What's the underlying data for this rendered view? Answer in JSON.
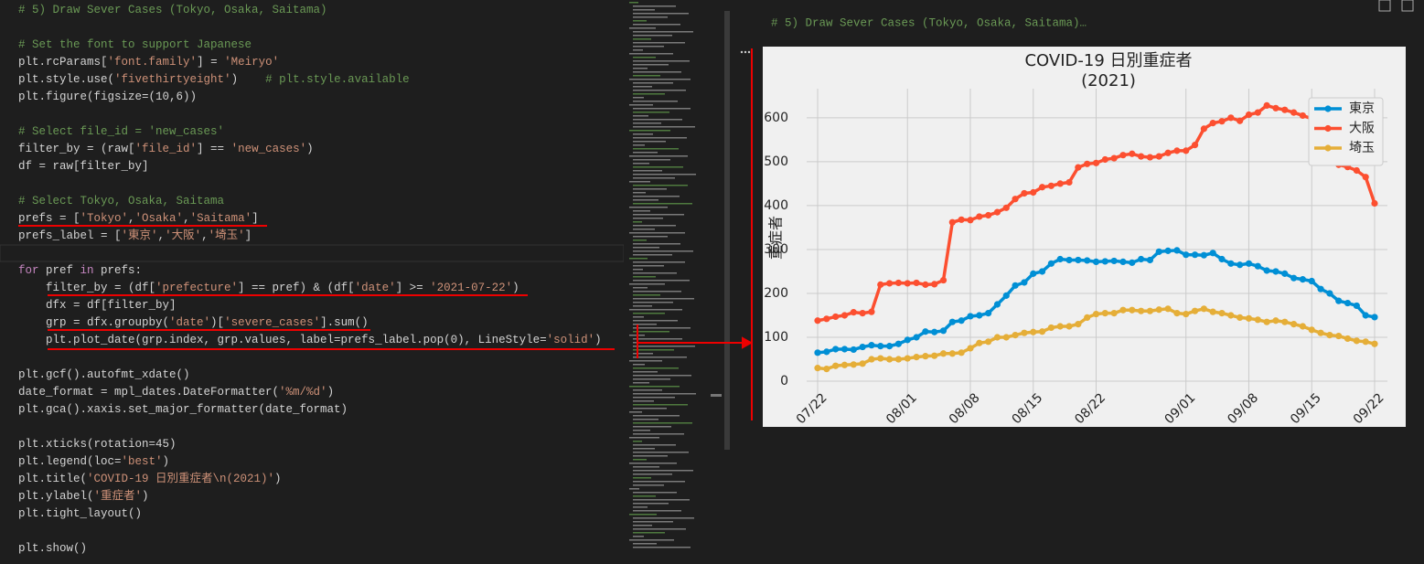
{
  "editor": {
    "code_blocks": [
      [
        [
          "# 5) Draw Sever Cases (Tokyo, Osaka, Saitama)"
        ]
      ],
      [
        [
          "# Set the font to support Japanese"
        ],
        [
          "plt.rcParams[",
          "'font.family'",
          "] = ",
          "'Meiryo'"
        ],
        [
          "plt.style.use(",
          "'fivethirtyeight'",
          ")    ",
          "# plt.style.available"
        ],
        [
          "plt.figure(figsize=(10,6))"
        ]
      ],
      [
        [
          "# Select file_id = 'new_cases'"
        ],
        [
          "filter_by = (raw[",
          "'file_id'",
          "] == ",
          "'new_cases'",
          ")"
        ],
        [
          "df = raw[filter_by]"
        ]
      ],
      [
        [
          "# Select Tokyo, Osaka, Saitama"
        ],
        [
          "prefs = [",
          "'Tokyo'",
          ",",
          "'Osaka'",
          ",",
          "'Saitama'",
          "]"
        ],
        [
          "prefs_label = [",
          "'東京'",
          ",",
          "'大阪'",
          ",",
          "'埼玉'",
          "]"
        ]
      ],
      [
        [
          "for",
          " pref ",
          "in",
          " prefs:"
        ],
        [
          "    filter_by = (df[",
          "'prefecture'",
          "] == pref) & (df[",
          "'date'",
          "] >= ",
          "'2021-07-22'",
          ")"
        ],
        [
          "    dfx = df[filter_by]"
        ],
        [
          "    grp = dfx.groupby(",
          "'date'",
          ")[",
          "'severe_cases'",
          "].sum()"
        ],
        [
          "    plt.plot_date(grp.index, grp.values, label=prefs_label.pop(0), LineStyle=",
          "'solid'",
          ")"
        ]
      ],
      [
        [
          "plt.gcf().autofmt_xdate()"
        ],
        [
          "date_format = mpl_dates.DateFormatter(",
          "'%m/%d'",
          ")"
        ],
        [
          "plt.gca().xaxis.set_major_formatter(date_format)"
        ]
      ],
      [
        [
          "plt.xticks(rotation=45)"
        ],
        [
          "plt.legend(loc=",
          "'best'",
          ")"
        ],
        [
          "plt.title(",
          "'COVID-19 日別重症者\\n(2021)'",
          ")"
        ],
        [
          "plt.ylabel(",
          "'重症者'",
          ")"
        ],
        [
          "plt.tight_layout()"
        ]
      ],
      [
        [
          "plt.show()"
        ]
      ]
    ]
  },
  "output": {
    "header": "# 5) Draw Sever Cases (Tokyo, Osaka, Saitama)…"
  },
  "chart_data": {
    "type": "line",
    "title": "COVID-19 日別重症者",
    "subtitle": "(2021)",
    "y_label": "重症者",
    "categories": [
      "07/22",
      null,
      null,
      null,
      null,
      null,
      null,
      null,
      null,
      null,
      "08/01",
      null,
      null,
      null,
      null,
      null,
      null,
      "08/08",
      null,
      null,
      null,
      null,
      null,
      null,
      "08/15",
      null,
      null,
      null,
      null,
      null,
      null,
      "08/22",
      null,
      null,
      null,
      null,
      null,
      null,
      null,
      null,
      null,
      "09/01",
      null,
      null,
      null,
      null,
      null,
      null,
      "09/08",
      null,
      null,
      null,
      null,
      null,
      null,
      "09/15",
      null,
      null,
      null,
      null,
      null,
      null,
      "09/22"
    ],
    "series": [
      {
        "name": "東京",
        "color": "#008fd5",
        "values": [
          65,
          67,
          73,
          73,
          72,
          78,
          82,
          80,
          80,
          85,
          94,
          100,
          113,
          112,
          115,
          135,
          138,
          148,
          150,
          155,
          175,
          195,
          218,
          225,
          245,
          250,
          268,
          278,
          276,
          276,
          275,
          272,
          273,
          274,
          272,
          270,
          278,
          276,
          295,
          297,
          298,
          288,
          288,
          287,
          292,
          278,
          268,
          265,
          268,
          262,
          252,
          250,
          245,
          235,
          232,
          228,
          210,
          200,
          183,
          178,
          172,
          150,
          146
        ]
      },
      {
        "name": "大阪",
        "color": "#fc4f30",
        "values": [
          138,
          142,
          147,
          150,
          157,
          155,
          158,
          220,
          223,
          224,
          223,
          224,
          220,
          221,
          230,
          362,
          368,
          367,
          375,
          378,
          385,
          395,
          415,
          428,
          430,
          442,
          445,
          450,
          453,
          487,
          495,
          497,
          505,
          508,
          515,
          518,
          512,
          510,
          512,
          520,
          525,
          525,
          538,
          575,
          588,
          592,
          600,
          593,
          607,
          612,
          628,
          622,
          618,
          612,
          605,
          598,
          580,
          500,
          493,
          488,
          480,
          465,
          405
        ]
      },
      {
        "name": "埼玉",
        "color": "#e5ae38",
        "values": [
          30,
          28,
          35,
          37,
          38,
          40,
          50,
          52,
          50,
          50,
          52,
          55,
          57,
          58,
          63,
          63,
          65,
          75,
          87,
          90,
          100,
          100,
          105,
          110,
          112,
          113,
          122,
          125,
          125,
          130,
          145,
          153,
          155,
          155,
          162,
          162,
          160,
          160,
          163,
          165,
          155,
          153,
          160,
          165,
          158,
          155,
          150,
          145,
          143,
          140,
          135,
          138,
          135,
          130,
          125,
          117,
          110,
          105,
          103,
          97,
          92,
          90,
          85
        ]
      }
    ],
    "ylim": [
      -2,
      658
    ],
    "yticks": [
      0,
      100,
      200,
      300,
      400,
      500,
      600
    ],
    "grid": true,
    "legend": "upper right"
  }
}
